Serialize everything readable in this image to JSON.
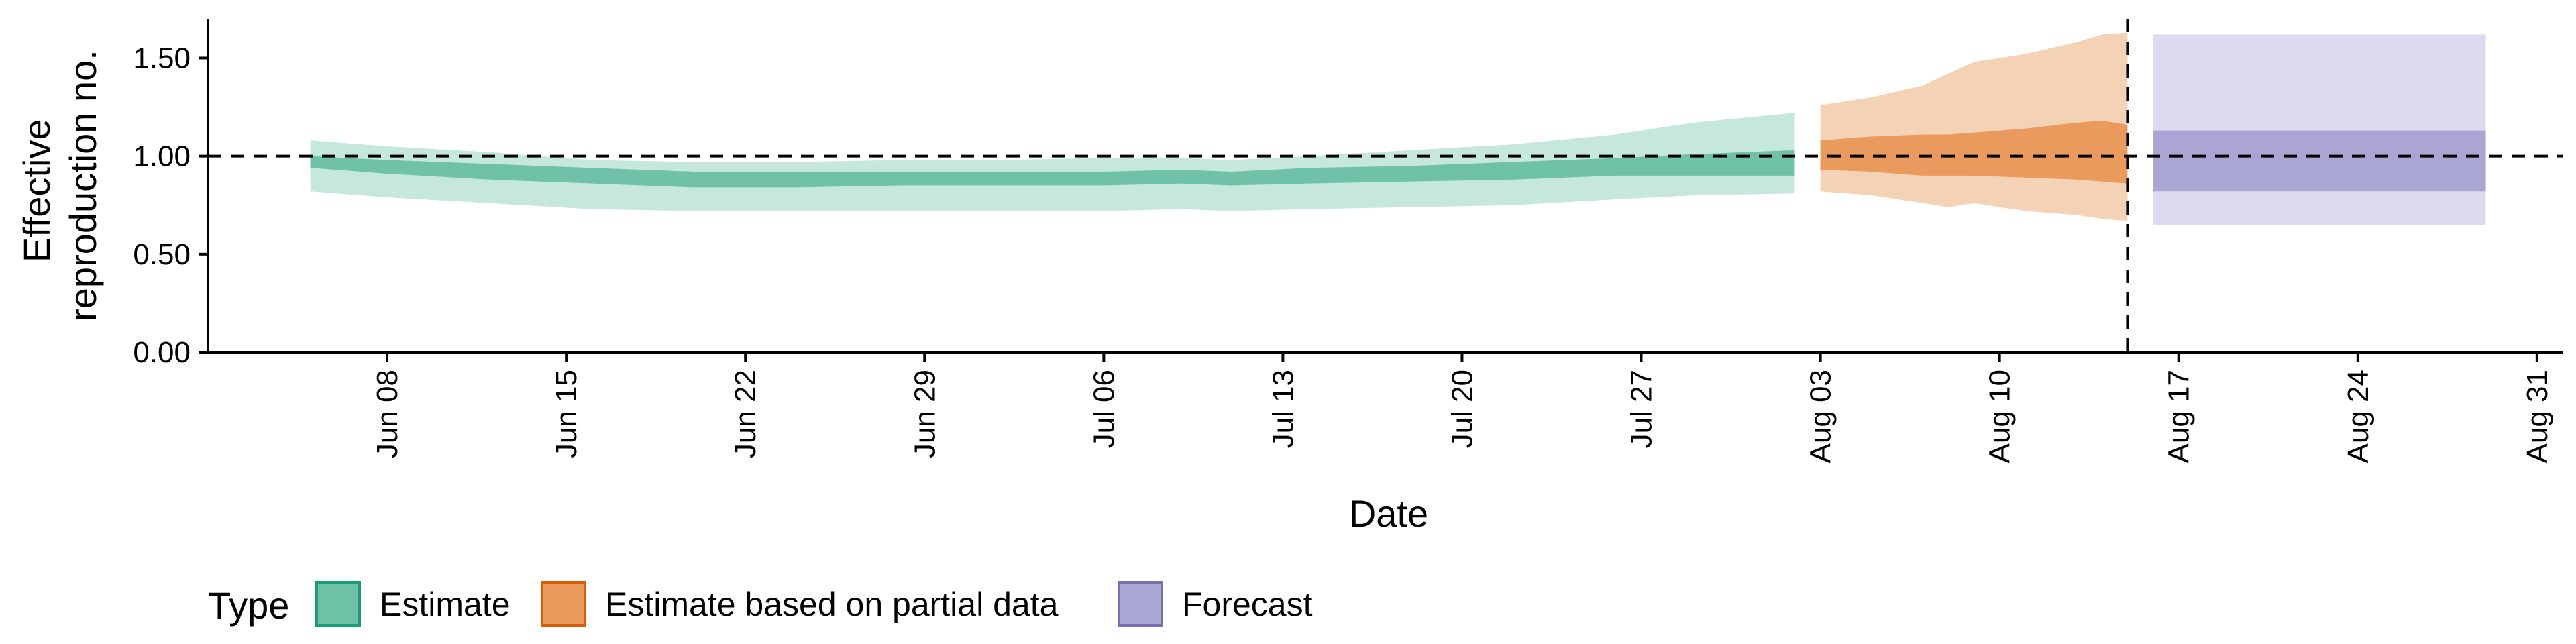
{
  "chart_data": {
    "type": "area",
    "xlabel": "Date",
    "ylabel_lines": [
      "Effective",
      "reproduction no."
    ],
    "ylim": [
      0.0,
      1.7
    ],
    "y_ticks": [
      0.0,
      0.5,
      1.0,
      1.5
    ],
    "y_tick_labels": [
      "0.00",
      "0.50",
      "1.00",
      "1.50"
    ],
    "x_start": "2020-06-01",
    "x_end": "2020-09-01",
    "x_ticks": [
      "2020-06-08",
      "2020-06-15",
      "2020-06-22",
      "2020-06-29",
      "2020-07-06",
      "2020-07-13",
      "2020-07-20",
      "2020-07-27",
      "2020-08-03",
      "2020-08-10",
      "2020-08-17",
      "2020-08-24",
      "2020-08-31"
    ],
    "x_tick_labels": [
      "Jun 08",
      "Jun 15",
      "Jun 22",
      "Jun 29",
      "Jul 06",
      "Jul 13",
      "Jul 20",
      "Jul 27",
      "Aug 03",
      "Aug 10",
      "Aug 17",
      "Aug 24",
      "Aug 31"
    ],
    "reference_line_y": 1.0,
    "forecast_start_date": "2020-08-15",
    "legend": {
      "title": "Type",
      "position": "bottom",
      "entries": [
        {
          "label": "Estimate",
          "fill": "#6fc2a8",
          "stroke": "#1b9e77"
        },
        {
          "label": "Estimate based on partial data",
          "fill": "#ea9a5c",
          "stroke": "#d95f02"
        },
        {
          "label": "Forecast",
          "fill": "#aaa6d4",
          "stroke": "#7570b3"
        }
      ]
    },
    "series": [
      {
        "name": "Estimate",
        "outer_fill": "#c5e7dc",
        "inner_fill": "#6fc2a8",
        "dates": [
          "2020-06-05",
          "2020-06-08",
          "2020-06-12",
          "2020-06-16",
          "2020-06-20",
          "2020-06-24",
          "2020-06-28",
          "2020-07-02",
          "2020-07-06",
          "2020-07-09",
          "2020-07-11",
          "2020-07-14",
          "2020-07-18",
          "2020-07-22",
          "2020-07-26",
          "2020-07-29",
          "2020-08-02"
        ],
        "lower90": [
          0.82,
          0.79,
          0.76,
          0.73,
          0.72,
          0.72,
          0.72,
          0.72,
          0.72,
          0.73,
          0.72,
          0.73,
          0.74,
          0.75,
          0.78,
          0.8,
          0.81
        ],
        "lower50": [
          0.94,
          0.91,
          0.88,
          0.86,
          0.84,
          0.84,
          0.85,
          0.85,
          0.85,
          0.86,
          0.85,
          0.86,
          0.87,
          0.88,
          0.9,
          0.9,
          0.9
        ],
        "upper50": [
          1.0,
          0.98,
          0.96,
          0.94,
          0.92,
          0.92,
          0.92,
          0.92,
          0.92,
          0.93,
          0.92,
          0.94,
          0.95,
          0.97,
          0.99,
          1.01,
          1.03
        ],
        "upper90": [
          1.08,
          1.05,
          1.02,
          0.98,
          0.97,
          0.97,
          0.98,
          0.98,
          0.99,
          0.99,
          0.98,
          1.0,
          1.03,
          1.06,
          1.11,
          1.17,
          1.22
        ]
      },
      {
        "name": "Estimate based on partial data",
        "outer_fill": "#f4d2b6",
        "inner_fill": "#ea9a5c",
        "dates": [
          "2020-08-03",
          "2020-08-05",
          "2020-08-07",
          "2020-08-08",
          "2020-08-09",
          "2020-08-11",
          "2020-08-13",
          "2020-08-14",
          "2020-08-15"
        ],
        "lower90": [
          0.82,
          0.8,
          0.76,
          0.74,
          0.76,
          0.72,
          0.7,
          0.68,
          0.67
        ],
        "lower50": [
          0.93,
          0.92,
          0.9,
          0.9,
          0.9,
          0.89,
          0.88,
          0.87,
          0.86
        ],
        "upper50": [
          1.08,
          1.1,
          1.11,
          1.11,
          1.12,
          1.14,
          1.17,
          1.18,
          1.16
        ],
        "upper90": [
          1.26,
          1.3,
          1.36,
          1.42,
          1.48,
          1.52,
          1.58,
          1.62,
          1.63
        ]
      },
      {
        "name": "Forecast",
        "outer_fill": "#dcdaee",
        "inner_fill": "#aaa6d4",
        "dates": [
          "2020-08-16",
          "2020-08-29"
        ],
        "lower90": [
          0.65,
          0.65
        ],
        "lower50": [
          0.82,
          0.82
        ],
        "upper50": [
          1.13,
          1.13
        ],
        "upper90": [
          1.62,
          1.62
        ]
      }
    ]
  }
}
